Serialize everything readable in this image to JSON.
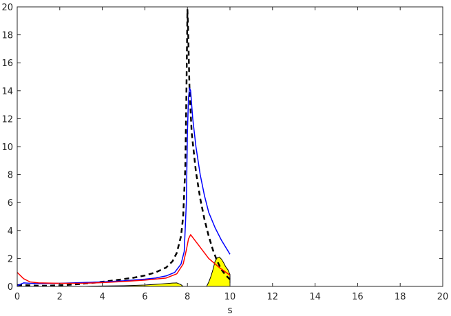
{
  "chart_data": {
    "type": "line",
    "title": "",
    "xlabel": "s",
    "ylabel": "",
    "xlim": [
      0,
      20
    ],
    "ylim": [
      0,
      20
    ],
    "xticks": [
      0,
      2,
      4,
      6,
      8,
      10,
      12,
      14,
      16,
      18,
      20
    ],
    "yticks": [
      0,
      2,
      4,
      6,
      8,
      10,
      12,
      14,
      16,
      18,
      20
    ],
    "grid": false,
    "legend": "none",
    "series": [
      {
        "style": "dashed",
        "color": "#000000",
        "points": [
          [
            0,
            0.1
          ],
          [
            0.5,
            0.08
          ],
          [
            1,
            0.05
          ],
          [
            1.5,
            0.05
          ],
          [
            2,
            0.08
          ],
          [
            2.5,
            0.12
          ],
          [
            3,
            0.18
          ],
          [
            3.5,
            0.25
          ],
          [
            4,
            0.33
          ],
          [
            4.5,
            0.42
          ],
          [
            5,
            0.52
          ],
          [
            5.5,
            0.63
          ],
          [
            6,
            0.78
          ],
          [
            6.5,
            1.0
          ],
          [
            7,
            1.35
          ],
          [
            7.3,
            1.8
          ],
          [
            7.5,
            2.4
          ],
          [
            7.7,
            3.6
          ],
          [
            7.8,
            5.0
          ],
          [
            7.9,
            8.5
          ],
          [
            7.95,
            13.5
          ],
          [
            8.0,
            19.8
          ],
          [
            8.03,
            18.5
          ],
          [
            8.1,
            14.0
          ],
          [
            8.2,
            11.0
          ],
          [
            8.4,
            8.2
          ],
          [
            8.6,
            6.3
          ],
          [
            8.8,
            4.8
          ],
          [
            9.0,
            3.6
          ],
          [
            9.2,
            2.6
          ],
          [
            9.4,
            1.8
          ],
          [
            9.6,
            1.2
          ],
          [
            9.8,
            0.8
          ],
          [
            10,
            0.5
          ]
        ]
      },
      {
        "style": "solid",
        "color": "#0000ff",
        "points": [
          [
            0,
            0.05
          ],
          [
            0.3,
            0.25
          ],
          [
            0.6,
            0.22
          ],
          [
            1,
            0.2
          ],
          [
            2,
            0.22
          ],
          [
            3,
            0.27
          ],
          [
            4,
            0.32
          ],
          [
            5,
            0.4
          ],
          [
            6,
            0.52
          ],
          [
            6.5,
            0.6
          ],
          [
            7,
            0.75
          ],
          [
            7.4,
            1.0
          ],
          [
            7.7,
            1.6
          ],
          [
            7.85,
            2.5
          ],
          [
            7.95,
            6.0
          ],
          [
            8.0,
            11.0
          ],
          [
            8.05,
            13.5
          ],
          [
            8.1,
            14.2
          ],
          [
            8.15,
            14.0
          ],
          [
            8.25,
            12.0
          ],
          [
            8.4,
            10.0
          ],
          [
            8.6,
            8.0
          ],
          [
            8.8,
            6.5
          ],
          [
            9.0,
            5.3
          ],
          [
            9.3,
            4.2
          ],
          [
            9.6,
            3.3
          ],
          [
            9.8,
            2.8
          ],
          [
            10,
            2.3
          ]
        ]
      },
      {
        "style": "solid",
        "color": "#ff0000",
        "points": [
          [
            0,
            1.0
          ],
          [
            0.3,
            0.55
          ],
          [
            0.6,
            0.32
          ],
          [
            1,
            0.25
          ],
          [
            2,
            0.22
          ],
          [
            3,
            0.22
          ],
          [
            4,
            0.27
          ],
          [
            5,
            0.35
          ],
          [
            6,
            0.45
          ],
          [
            7,
            0.6
          ],
          [
            7.5,
            0.9
          ],
          [
            7.8,
            1.6
          ],
          [
            7.95,
            2.6
          ],
          [
            8.05,
            3.4
          ],
          [
            8.15,
            3.7
          ],
          [
            8.25,
            3.5
          ],
          [
            8.5,
            3.0
          ],
          [
            9.0,
            2.0
          ],
          [
            9.5,
            1.35
          ],
          [
            10,
            0.8
          ]
        ]
      }
    ],
    "filled_regions": [
      {
        "fill": "#ffff00",
        "outline": "#000000",
        "points": [
          [
            3.2,
            0.0
          ],
          [
            3.5,
            0.02
          ],
          [
            4,
            0.03
          ],
          [
            5,
            0.05
          ],
          [
            6,
            0.1
          ],
          [
            6.8,
            0.18
          ],
          [
            7.3,
            0.24
          ],
          [
            7.5,
            0.25
          ],
          [
            7.7,
            0.12
          ],
          [
            7.8,
            0.0
          ]
        ]
      },
      {
        "fill": "#ffff00",
        "outline": "#000000",
        "points": [
          [
            8.9,
            0.0
          ],
          [
            9.0,
            0.3
          ],
          [
            9.1,
            0.7
          ],
          [
            9.2,
            1.2
          ],
          [
            9.3,
            1.8
          ],
          [
            9.4,
            2.05
          ],
          [
            9.5,
            2.1
          ],
          [
            9.6,
            1.95
          ],
          [
            9.7,
            1.7
          ],
          [
            9.8,
            1.4
          ],
          [
            9.9,
            1.2
          ],
          [
            10,
            0.85
          ],
          [
            10,
            0.0
          ]
        ]
      }
    ]
  }
}
